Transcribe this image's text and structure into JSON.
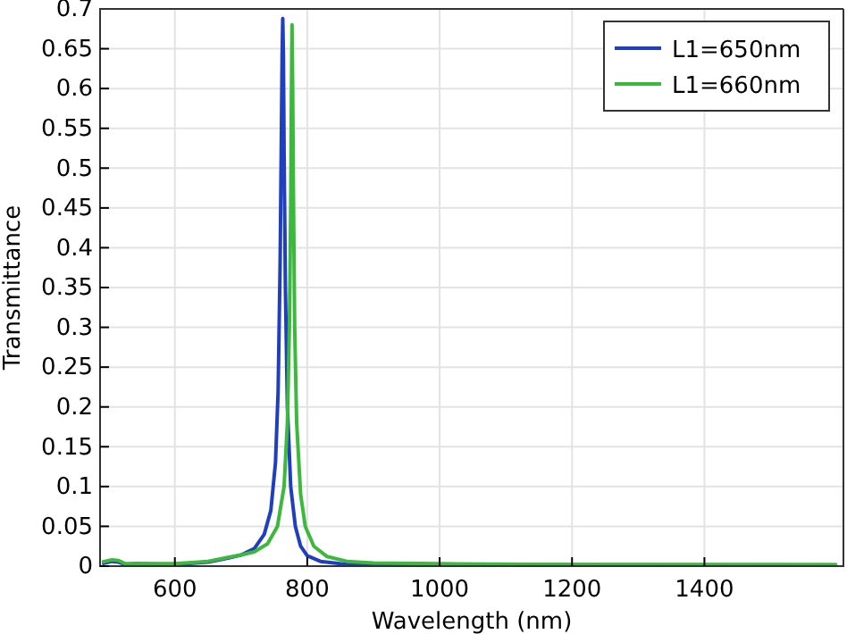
{
  "chart_data": {
    "type": "line",
    "xlabel": "Wavelength (nm)",
    "ylabel": "Transmittance",
    "xlim": [
      487,
      1610
    ],
    "ylim": [
      0,
      0.7
    ],
    "xticks": [
      600,
      800,
      1000,
      1200,
      1400
    ],
    "yticks": [
      0,
      0.05,
      0.1,
      0.15,
      0.2,
      0.25,
      0.3,
      0.35,
      0.4,
      0.45,
      0.5,
      0.55,
      0.6,
      0.65,
      0.7
    ],
    "grid": true,
    "legend": "top right",
    "line_style": "solid",
    "marker": "none",
    "series": [
      {
        "name": "L1=650nm",
        "color": "#1f3fbf",
        "x": [
          490,
          505,
          515,
          525,
          540,
          600,
          650,
          680,
          700,
          720,
          735,
          745,
          752,
          756,
          759,
          761,
          762,
          763,
          764,
          765,
          767,
          770,
          775,
          782,
          790,
          800,
          820,
          850,
          900,
          1600
        ],
        "values": [
          0.003,
          0.006,
          0.005,
          0.002,
          0.003,
          0.002,
          0.005,
          0.01,
          0.014,
          0.022,
          0.04,
          0.07,
          0.13,
          0.22,
          0.38,
          0.55,
          0.64,
          0.688,
          0.64,
          0.52,
          0.35,
          0.2,
          0.1,
          0.05,
          0.025,
          0.013,
          0.006,
          0.003,
          0.002,
          0.001
        ]
      },
      {
        "name": "L1=660nm",
        "color": "#3cb93c",
        "x": [
          490,
          505,
          515,
          525,
          540,
          600,
          650,
          680,
          700,
          720,
          740,
          755,
          765,
          770,
          773,
          775,
          776,
          777,
          778,
          779,
          781,
          784,
          790,
          797,
          810,
          830,
          860,
          900,
          1000,
          1200,
          1600
        ],
        "values": [
          0.005,
          0.008,
          0.007,
          0.003,
          0.003,
          0.003,
          0.006,
          0.011,
          0.014,
          0.018,
          0.028,
          0.05,
          0.1,
          0.18,
          0.3,
          0.45,
          0.58,
          0.68,
          0.6,
          0.48,
          0.3,
          0.18,
          0.09,
          0.05,
          0.025,
          0.012,
          0.006,
          0.004,
          0.003,
          0.002,
          0.002
        ]
      }
    ]
  }
}
